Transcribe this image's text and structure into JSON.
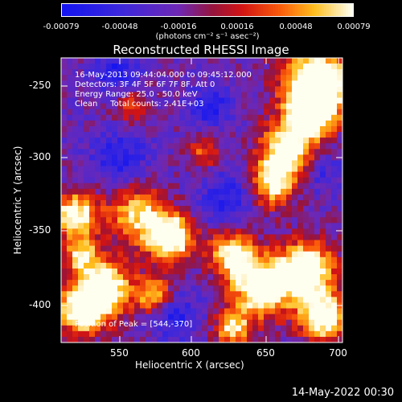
{
  "colorbar": {
    "tick_labels": [
      "-0.00079",
      "-0.00048",
      "-0.00016",
      "0.00016",
      "0.00048",
      "0.00079"
    ],
    "unit_label": "(photons cm⁻² s⁻¹ asec⁻²)"
  },
  "plot": {
    "title": "Reconstructed RHESSI Image",
    "annotation_lines": [
      "16-May-2013 09:44:04.000 to 09:45:12.000",
      "Detectors: 3F 4F 5F 6F 7F 8F, Att 0",
      "Energy Range: 25.0 - 50.0 keV",
      "Clean     Total counts: 2.41E+03"
    ],
    "peak_label": "Position of Peak = [544,-370]",
    "x_axis_title": "Heliocentric X (arcsec)",
    "y_axis_title": "Heliocentric Y (arcsec)",
    "x_tick_labels": [
      "550",
      "600",
      "650",
      "700"
    ],
    "y_tick_labels": [
      "-250",
      "-300",
      "-350",
      "-400"
    ]
  },
  "footer": {
    "timestamp": "14-May-2022 00:30"
  }
}
